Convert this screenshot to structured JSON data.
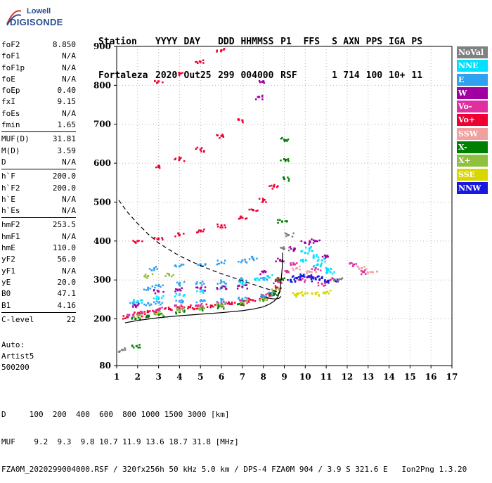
{
  "logo": {
    "line1": "Lowell",
    "line2": "DIGISONDE"
  },
  "header": {
    "row1": [
      "Station",
      "YYYY",
      "DAY",
      "DDD",
      "HHMMSS",
      "P1",
      "FFS",
      "S",
      "AXN",
      "PPS",
      "IGA",
      "PS"
    ],
    "row2": [
      "Fortaleza",
      "2020",
      "Out25",
      "299",
      "004000",
      "RSF",
      "",
      "1",
      "714",
      "100",
      "10+",
      "11"
    ]
  },
  "params": {
    "group1": [
      {
        "k": "foF2",
        "v": "8.850"
      },
      {
        "k": "foF1",
        "v": "N/A"
      },
      {
        "k": "foF1p",
        "v": "N/A"
      },
      {
        "k": "foE",
        "v": "N/A"
      },
      {
        "k": "foEp",
        "v": "0.40"
      },
      {
        "k": "fxI",
        "v": "9.15"
      },
      {
        "k": "foEs",
        "v": "N/A"
      },
      {
        "k": "fmin",
        "v": "1.65"
      }
    ],
    "group2": [
      {
        "k": "MUF(D)",
        "v": "31.81"
      },
      {
        "k": "M(D)",
        "v": "3.59"
      },
      {
        "k": "D",
        "v": "N/A"
      }
    ],
    "group3": [
      {
        "k": "h`F",
        "v": "200.0"
      },
      {
        "k": "h`F2",
        "v": "200.0"
      },
      {
        "k": "h`E",
        "v": "N/A"
      },
      {
        "k": "h`Es",
        "v": "N/A"
      }
    ],
    "group4": [
      {
        "k": "hmF2",
        "v": "253.5"
      },
      {
        "k": "hmF1",
        "v": "N/A"
      },
      {
        "k": "hmE",
        "v": "110.0"
      },
      {
        "k": "yF2",
        "v": "56.0"
      },
      {
        "k": "yF1",
        "v": "N/A"
      },
      {
        "k": "yE",
        "v": "20.0"
      },
      {
        "k": "B0",
        "v": "47.1"
      },
      {
        "k": "B1",
        "v": "4.16"
      }
    ],
    "group5": [
      {
        "k": "C-level",
        "v": "22"
      }
    ]
  },
  "auto": {
    "line1": "Auto:",
    "line2": "Artist5",
    "line3": "500200"
  },
  "legend": [
    {
      "label": "NoVal",
      "color": "#808080"
    },
    {
      "label": "NNE",
      "color": "#00e0ff"
    },
    {
      "label": "E",
      "color": "#30a0f0"
    },
    {
      "label": "W",
      "color": "#a000a0"
    },
    {
      "label": "Vo-",
      "color": "#e030a0"
    },
    {
      "label": "Vo+",
      "color": "#ee0030"
    },
    {
      "label": "SSW",
      "color": "#f0a0a0"
    },
    {
      "label": "X-",
      "color": "#008000"
    },
    {
      "label": "X+",
      "color": "#90c040"
    },
    {
      "label": "SSE",
      "color": "#d8d800"
    },
    {
      "label": "NNW",
      "color": "#1818e0"
    }
  ],
  "footer": {
    "line1": "D     100  200  400  600  800 1000 1500 3000 [km]",
    "line2": "MUF    9.2  9.3  9.8 10.7 11.9 13.6 18.7 31.8 [MHz]",
    "line3": "FZA0M_2020299004000.RSF / 320fx256h 50 kHz 5.0 km / DPS-4 FZA0M 904 / 3.9 S 321.6 E   Ion2Png 1.3.20"
  },
  "chart_data": {
    "type": "scatter",
    "xlim": [
      1,
      17
    ],
    "ylim": [
      80,
      900
    ],
    "x_ticks": [
      1,
      2,
      3,
      4,
      5,
      6,
      7,
      8,
      9,
      10,
      11,
      12,
      13,
      14,
      15,
      16,
      17
    ],
    "y_ticks": [
      80,
      200,
      300,
      400,
      500,
      600,
      700,
      800,
      900
    ],
    "grid": "dotted",
    "legend_placement": "right",
    "series": [
      {
        "name": "Vo+",
        "points": [
          [
            1.5,
            205
          ],
          [
            2,
            212
          ],
          [
            2.5,
            218
          ],
          [
            3,
            222
          ],
          [
            3.5,
            225
          ],
          [
            4,
            228
          ],
          [
            4.5,
            230
          ],
          [
            5,
            232
          ],
          [
            5.5,
            234
          ],
          [
            6,
            236
          ],
          [
            6.5,
            238
          ],
          [
            7,
            241
          ],
          [
            7.5,
            248
          ],
          [
            8,
            256
          ],
          [
            8.3,
            265
          ],
          [
            8.6,
            280
          ],
          [
            8.8,
            300
          ],
          [
            2,
            400
          ],
          [
            3,
            405
          ],
          [
            4,
            415
          ],
          [
            5,
            425
          ],
          [
            6,
            440
          ],
          [
            7,
            460
          ],
          [
            7.5,
            480
          ],
          [
            8,
            505
          ],
          [
            8.5,
            540
          ],
          [
            3,
            590
          ],
          [
            4,
            610
          ],
          [
            5,
            635
          ],
          [
            6,
            670
          ],
          [
            7,
            710
          ],
          [
            3,
            810
          ],
          [
            4,
            830
          ],
          [
            5,
            860
          ],
          [
            6,
            890
          ]
        ]
      },
      {
        "name": "Vo-",
        "points": [
          [
            1.6,
            210
          ],
          [
            2.2,
            215
          ],
          [
            3,
            225
          ],
          [
            4,
            230
          ],
          [
            5,
            235
          ],
          [
            6,
            240
          ],
          [
            7,
            245
          ],
          [
            8,
            260
          ],
          [
            8.7,
            295
          ],
          [
            9.2,
            320
          ],
          [
            9.5,
            340
          ],
          [
            9.8,
            300
          ],
          [
            10.2,
            310
          ],
          [
            10.5,
            330
          ],
          [
            10.8,
            290
          ],
          [
            11.2,
            300
          ],
          [
            12.3,
            340
          ],
          [
            12.8,
            320
          ]
        ]
      },
      {
        "name": "E",
        "points": [
          [
            1.8,
            238
          ],
          [
            2.5,
            240
          ],
          [
            3,
            242
          ],
          [
            4,
            245
          ],
          [
            5,
            246
          ],
          [
            6,
            248
          ],
          [
            7,
            250
          ],
          [
            8,
            258
          ],
          [
            8.5,
            265
          ],
          [
            2.5,
            280
          ],
          [
            3,
            285
          ],
          [
            4,
            290
          ],
          [
            5,
            292
          ],
          [
            6,
            295
          ],
          [
            7,
            300
          ],
          [
            8,
            305
          ],
          [
            2.8,
            330
          ],
          [
            4,
            335
          ],
          [
            5,
            340
          ],
          [
            6,
            345
          ],
          [
            7,
            350
          ],
          [
            7.5,
            355
          ]
        ]
      },
      {
        "name": "NNE",
        "points": [
          [
            2,
            245
          ],
          [
            3,
            255
          ],
          [
            4,
            262
          ],
          [
            5,
            270
          ],
          [
            6,
            280
          ],
          [
            7,
            290
          ],
          [
            7.8,
            300
          ],
          [
            8.2,
            310
          ],
          [
            9.8,
            350
          ],
          [
            10,
            370
          ],
          [
            10.2,
            380
          ],
          [
            10.4,
            360
          ],
          [
            10.6,
            340
          ],
          [
            10.8,
            350
          ],
          [
            11,
            330
          ],
          [
            11.2,
            320
          ]
        ]
      },
      {
        "name": "W",
        "points": [
          [
            2,
            235
          ],
          [
            3,
            270
          ],
          [
            4,
            275
          ],
          [
            5,
            278
          ],
          [
            6,
            280
          ],
          [
            7,
            282
          ],
          [
            8,
            320
          ],
          [
            8.8,
            350
          ],
          [
            9.5,
            380
          ],
          [
            10,
            395
          ],
          [
            10.5,
            400
          ],
          [
            11,
            360
          ],
          [
            7.8,
            770
          ],
          [
            8,
            810
          ]
        ]
      },
      {
        "name": "X-",
        "points": [
          [
            1.9,
            200
          ],
          [
            2.5,
            205
          ],
          [
            3,
            212
          ],
          [
            4,
            218
          ],
          [
            5,
            225
          ],
          [
            6,
            232
          ],
          [
            7,
            240
          ],
          [
            8,
            250
          ],
          [
            8.5,
            262
          ],
          [
            8.8,
            300
          ],
          [
            8.9,
            450
          ],
          [
            9,
            560
          ],
          [
            9,
            610
          ],
          [
            9,
            660
          ],
          [
            1.95,
            130
          ]
        ]
      },
      {
        "name": "X+",
        "points": [
          [
            2,
            208
          ],
          [
            3,
            215
          ],
          [
            4,
            222
          ],
          [
            5,
            228
          ],
          [
            6,
            235
          ],
          [
            7,
            243
          ],
          [
            8,
            253
          ],
          [
            8.6,
            275
          ],
          [
            2.5,
            310
          ],
          [
            3.5,
            315
          ]
        ]
      },
      {
        "name": "SSE",
        "points": [
          [
            9.5,
            262
          ],
          [
            10,
            265
          ],
          [
            10.5,
            264
          ],
          [
            11,
            268
          ]
        ]
      },
      {
        "name": "NNW",
        "points": [
          [
            9.3,
            300
          ],
          [
            9.6,
            305
          ],
          [
            9.9,
            310
          ],
          [
            10.2,
            308
          ],
          [
            10.5,
            302
          ],
          [
            10.8,
            305
          ],
          [
            11.1,
            298
          ],
          [
            11.4,
            300
          ]
        ]
      },
      {
        "name": "SSW",
        "points": [
          [
            9.6,
            330
          ],
          [
            10.3,
            320
          ],
          [
            12.7,
            330
          ],
          [
            13.2,
            320
          ]
        ]
      },
      {
        "name": "NoVal",
        "points": [
          [
            1.3,
            120
          ],
          [
            9.0,
            380
          ],
          [
            9.2,
            415
          ],
          [
            11.6,
            300
          ]
        ]
      }
    ],
    "lines": [
      {
        "name": "virtual-height-profile",
        "points": [
          [
            1.4,
            190
          ],
          [
            2,
            196
          ],
          [
            3,
            203
          ],
          [
            4,
            208
          ],
          [
            5,
            212
          ],
          [
            6,
            216
          ],
          [
            7,
            221
          ],
          [
            7.5,
            225
          ],
          [
            8,
            231
          ],
          [
            8.3,
            238
          ],
          [
            8.5,
            245
          ],
          [
            8.6,
            250
          ],
          [
            8.7,
            258
          ],
          [
            8.8,
            275
          ],
          [
            8.85,
            300
          ],
          [
            8.9,
            330
          ],
          [
            8.92,
            370
          ]
        ]
      },
      {
        "name": "true-height-profile",
        "points": [
          [
            8.1,
            255
          ],
          [
            8.4,
            252
          ],
          [
            8.6,
            251
          ],
          [
            8.75,
            253
          ],
          [
            8.85,
            258
          ]
        ]
      },
      {
        "name": "dashed-curve",
        "points": [
          [
            1.1,
            505
          ],
          [
            1.5,
            475
          ],
          [
            2,
            445
          ],
          [
            2.5,
            418
          ],
          [
            3,
            395
          ],
          [
            3.5,
            378
          ],
          [
            4,
            362
          ],
          [
            4.5,
            349
          ],
          [
            5,
            337
          ],
          [
            5.5,
            326
          ],
          [
            6,
            316
          ],
          [
            6.5,
            307
          ],
          [
            7,
            298
          ],
          [
            7.5,
            289
          ],
          [
            8,
            280
          ],
          [
            8.5,
            272
          ],
          [
            8.8,
            268
          ]
        ]
      }
    ]
  }
}
